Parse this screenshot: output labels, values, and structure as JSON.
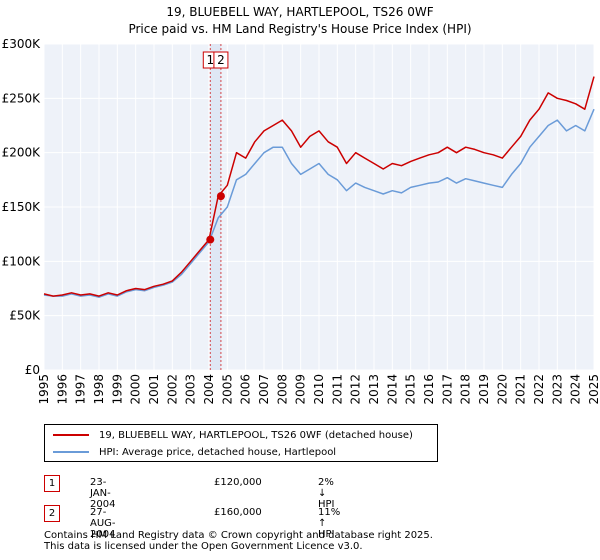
{
  "chart_data": {
    "type": "line",
    "title_line1": "19, BLUEBELL WAY, HARTLEPOOL, TS26 0WF",
    "title_line2": "Price paid vs. HM Land Registry's House Price Index (HPI)",
    "x_ticks": [
      "1995",
      "1996",
      "1997",
      "1998",
      "1999",
      "2000",
      "2001",
      "2002",
      "2003",
      "2004",
      "2005",
      "2006",
      "2007",
      "2008",
      "2009",
      "2010",
      "2011",
      "2012",
      "2013",
      "2014",
      "2015",
      "2016",
      "2017",
      "2018",
      "2019",
      "2020",
      "2021",
      "2022",
      "2023",
      "2024",
      "2025"
    ],
    "y_ticks": [
      "£0",
      "£50K",
      "£100K",
      "£150K",
      "£200K",
      "£250K",
      "£300K"
    ],
    "xlim": [
      1995,
      2025
    ],
    "ylim": [
      0,
      300000
    ],
    "grid": true,
    "series": [
      {
        "name": "19, BLUEBELL WAY, HARTLEPOOL, TS26 0WF (detached house)",
        "color": "#cc0000",
        "x": [
          1995,
          1995.5,
          1996,
          1996.5,
          1997,
          1997.5,
          1998,
          1998.5,
          1999,
          1999.5,
          2000,
          2000.5,
          2001,
          2001.5,
          2002,
          2002.5,
          2003,
          2003.5,
          2004,
          2004.5,
          2005,
          2005.5,
          2006,
          2006.5,
          2007,
          2007.5,
          2008,
          2008.5,
          2009,
          2009.5,
          2010,
          2010.5,
          2011,
          2011.5,
          2012,
          2012.5,
          2013,
          2013.5,
          2014,
          2014.5,
          2015,
          2015.5,
          2016,
          2016.5,
          2017,
          2017.5,
          2018,
          2018.5,
          2019,
          2019.5,
          2020,
          2020.5,
          2021,
          2021.5,
          2022,
          2022.5,
          2023,
          2023.5,
          2024,
          2024.5,
          2025
        ],
        "values": [
          70000,
          68000,
          69000,
          71000,
          69000,
          70000,
          68000,
          71000,
          69000,
          73000,
          75000,
          74000,
          77000,
          79000,
          82000,
          90000,
          100000,
          110000,
          120000,
          160000,
          170000,
          200000,
          195000,
          210000,
          220000,
          225000,
          230000,
          220000,
          205000,
          215000,
          220000,
          210000,
          205000,
          190000,
          200000,
          195000,
          190000,
          185000,
          190000,
          188000,
          192000,
          195000,
          198000,
          200000,
          205000,
          200000,
          205000,
          203000,
          200000,
          198000,
          195000,
          205000,
          215000,
          230000,
          240000,
          255000,
          250000,
          248000,
          245000,
          240000,
          270000
        ]
      },
      {
        "name": "HPI: Average price, detached house, Hartlepool",
        "color": "#6a9bd8",
        "x": [
          1995,
          1995.5,
          1996,
          1996.5,
          1997,
          1997.5,
          1998,
          1998.5,
          1999,
          1999.5,
          2000,
          2000.5,
          2001,
          2001.5,
          2002,
          2002.5,
          2003,
          2003.5,
          2004,
          2004.5,
          2005,
          2005.5,
          2006,
          2006.5,
          2007,
          2007.5,
          2008,
          2008.5,
          2009,
          2009.5,
          2010,
          2010.5,
          2011,
          2011.5,
          2012,
          2012.5,
          2013,
          2013.5,
          2014,
          2014.5,
          2015,
          2015.5,
          2016,
          2016.5,
          2017,
          2017.5,
          2018,
          2018.5,
          2019,
          2019.5,
          2020,
          2020.5,
          2021,
          2021.5,
          2022,
          2022.5,
          2023,
          2023.5,
          2024,
          2024.5,
          2025
        ],
        "values": [
          69000,
          68000,
          68000,
          70000,
          68000,
          69000,
          67000,
          70000,
          68000,
          72000,
          74000,
          73000,
          76000,
          78000,
          81000,
          88000,
          98000,
          108000,
          118000,
          140000,
          150000,
          175000,
          180000,
          190000,
          200000,
          205000,
          205000,
          190000,
          180000,
          185000,
          190000,
          180000,
          175000,
          165000,
          172000,
          168000,
          165000,
          162000,
          165000,
          163000,
          168000,
          170000,
          172000,
          173000,
          177000,
          172000,
          176000,
          174000,
          172000,
          170000,
          168000,
          180000,
          190000,
          205000,
          215000,
          225000,
          230000,
          220000,
          225000,
          220000,
          240000
        ]
      }
    ],
    "sales": [
      {
        "id": "1",
        "x": 2004.07,
        "value": 120000
      },
      {
        "id": "2",
        "x": 2004.65,
        "value": 160000
      }
    ]
  },
  "legend": {
    "property_label": "19, BLUEBELL WAY, HARTLEPOOL, TS26 0WF (detached house)",
    "hpi_label": "HPI: Average price, detached house, Hartlepool"
  },
  "sales_table": [
    {
      "id": "1",
      "date": "23-JAN-2004",
      "price": "£120,000",
      "hpi": "2% ↓ HPI"
    },
    {
      "id": "2",
      "date": "27-AUG-2004",
      "price": "£160,000",
      "hpi": "11% ↑ HPI"
    }
  ],
  "footer": {
    "line1": "Contains HM Land Registry data © Crown copyright and database right 2025.",
    "line2": "This data is licensed under the Open Government Licence v3.0."
  },
  "colors": {
    "property": "#cc0000",
    "hpi": "#6a9bd8",
    "grid": "#dddddd",
    "plot_bg": "#eef2f9"
  }
}
